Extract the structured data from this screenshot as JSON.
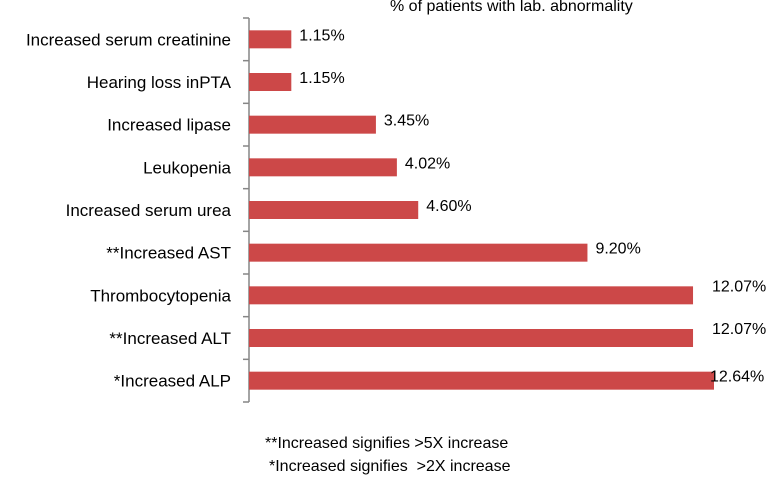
{
  "chart_data": {
    "type": "bar",
    "orientation": "horizontal",
    "title": "% of patients with lab. abnormality",
    "categories": [
      "Increased serum creatinine",
      "Hearing loss inPTA",
      "Increased lipase",
      "Leukopenia",
      "Increased serum urea",
      "**Increased AST",
      "Thrombocytopenia",
      "**Increased ALT",
      "*Increased ALP"
    ],
    "values": [
      1.15,
      1.15,
      3.45,
      4.02,
      4.6,
      9.2,
      12.07,
      12.07,
      12.64
    ],
    "value_labels": [
      "1.15%",
      "1.15%",
      "3.45%",
      "4.02%",
      "4.60%",
      "9.20%",
      "12.07%",
      "12.07%",
      "12.64%"
    ],
    "xlim": [
      0,
      12.64
    ],
    "bar_color": "#cc4848",
    "axis_color": "#868686",
    "notes": [
      "**Increased signifies >5X increase",
      "*Increased signifies  >2X increase"
    ]
  }
}
